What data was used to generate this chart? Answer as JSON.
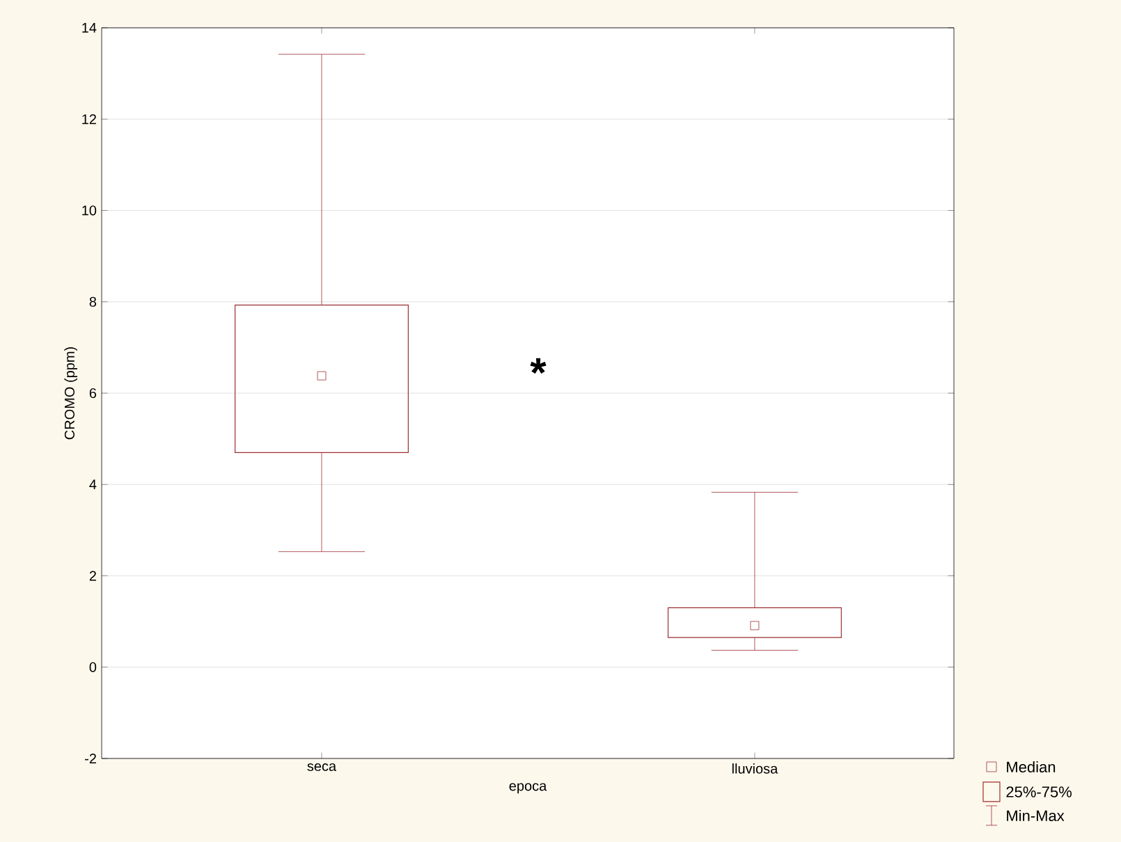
{
  "chart_data": {
    "type": "box",
    "categories": [
      "seca",
      "lluviosa"
    ],
    "boxes": [
      {
        "low": 2.53,
        "q1": 4.7,
        "median": 6.38,
        "q3": 7.93,
        "high": 13.42
      },
      {
        "low": 0.37,
        "q1": 0.65,
        "median": 0.91,
        "q3": 1.3,
        "high": 3.83
      }
    ],
    "color": "#9b2f33",
    "xlabel": "epoca",
    "ylabel": "CROMO (ppm)",
    "ylim": [
      -2,
      14
    ],
    "yticks": [
      -2,
      0,
      2,
      4,
      6,
      8,
      10,
      12,
      14
    ],
    "grid": "y",
    "marker": "square",
    "annotations": [
      "*",
      "Median",
      "25%-75%",
      "Min-Max"
    ]
  }
}
